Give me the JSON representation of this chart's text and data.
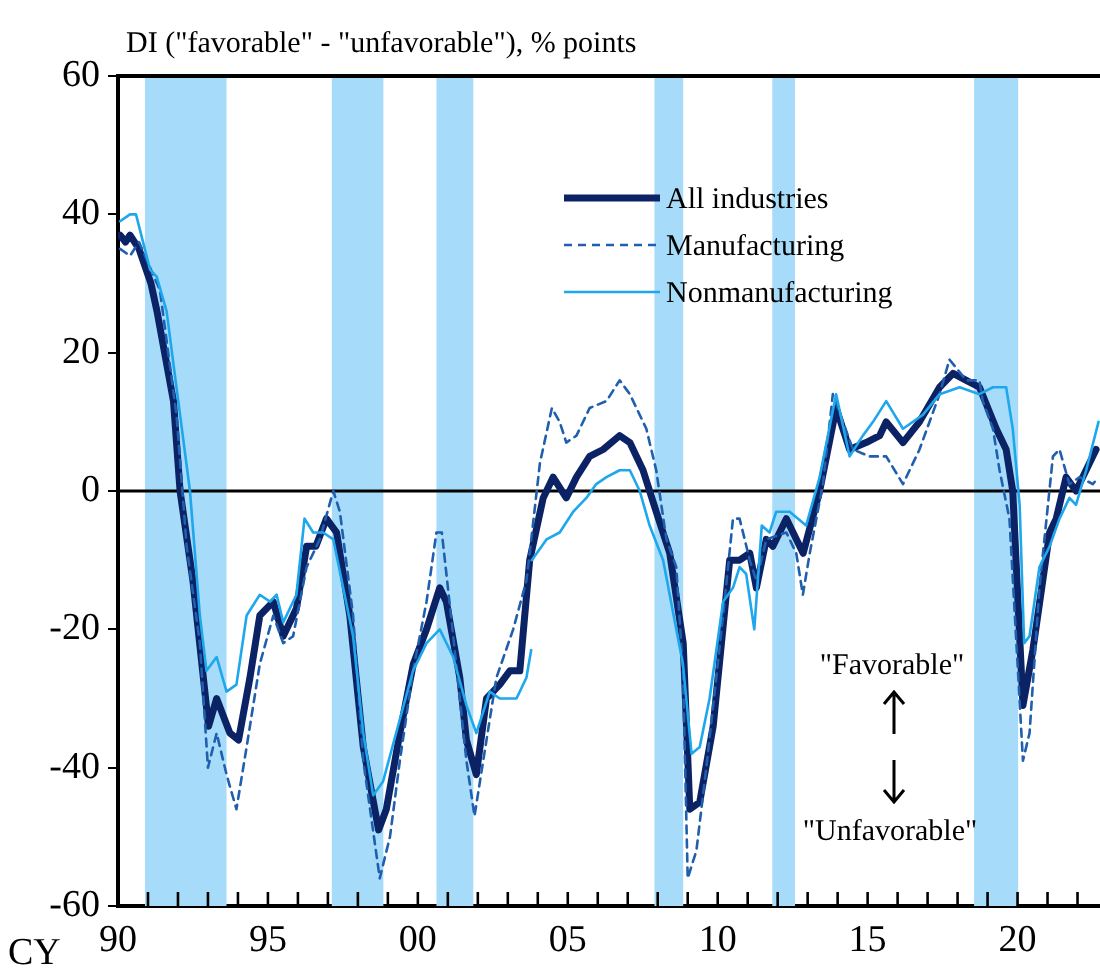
{
  "chart_data": {
    "type": "line",
    "ylabel": "DI (\"favorable\" - \"unfavorable\"), % points",
    "xlabel": "CY",
    "xlim": [
      1990,
      2022.75
    ],
    "xticks": [
      {
        "value": 1990,
        "label": "90"
      },
      {
        "value": 1991,
        "label": null
      },
      {
        "value": 1992,
        "label": null
      },
      {
        "value": 1993,
        "label": null
      },
      {
        "value": 1994,
        "label": null
      },
      {
        "value": 1995,
        "label": "95"
      },
      {
        "value": 1996,
        "label": null
      },
      {
        "value": 1997,
        "label": null
      },
      {
        "value": 1998,
        "label": null
      },
      {
        "value": 1999,
        "label": null
      },
      {
        "value": 2000,
        "label": "00"
      },
      {
        "value": 2001,
        "label": null
      },
      {
        "value": 2002,
        "label": null
      },
      {
        "value": 2003,
        "label": null
      },
      {
        "value": 2004,
        "label": null
      },
      {
        "value": 2005,
        "label": "05"
      },
      {
        "value": 2006,
        "label": null
      },
      {
        "value": 2007,
        "label": null
      },
      {
        "value": 2008,
        "label": null
      },
      {
        "value": 2009,
        "label": null
      },
      {
        "value": 2010,
        "label": "10"
      },
      {
        "value": 2011,
        "label": null
      },
      {
        "value": 2012,
        "label": null
      },
      {
        "value": 2013,
        "label": null
      },
      {
        "value": 2014,
        "label": null
      },
      {
        "value": 2015,
        "label": "15"
      },
      {
        "value": 2016,
        "label": null
      },
      {
        "value": 2017,
        "label": null
      },
      {
        "value": 2018,
        "label": null
      },
      {
        "value": 2019,
        "label": null
      },
      {
        "value": 2020,
        "label": "20"
      },
      {
        "value": 2021,
        "label": null
      },
      {
        "value": 2022,
        "label": null
      }
    ],
    "ylim": [
      -60,
      60
    ],
    "yticks": [
      -60,
      -40,
      -20,
      0,
      20,
      40,
      60
    ],
    "grid": false,
    "legend": "top right",
    "marker": "none",
    "series": [
      {
        "name": "All industries",
        "color": "#0b2265",
        "x": [
          1990.07,
          1990.25,
          1990.4,
          1990.7,
          1991.1,
          1991.3,
          1991.85,
          1992.07,
          1992.5,
          1993.02,
          1993.29,
          1993.73,
          1994.02,
          1994.4,
          1994.73,
          1995.18,
          1995.51,
          1995.95,
          1996.29,
          1996.6,
          1996.95,
          1997.29,
          1997.73,
          1998.18,
          1998.69,
          1998.95,
          1999.4,
          1999.85,
          2000.29,
          2000.73,
          2000.95,
          2001.4,
          2001.62,
          2001.95,
          2002.29,
          2002.73,
          2003.07,
          2003.4,
          2003.73,
          2004.18,
          2004.51,
          2004.95,
          2005.29,
          2005.73,
          2006.18,
          2006.73,
          2007.07,
          2007.51,
          2007.95,
          2008.4,
          2008.85,
          2009.07,
          2009.4,
          2009.85,
          2010.4,
          2010.73,
          2011.07,
          2011.29,
          2011.62,
          2011.84,
          2012.29,
          2012.85,
          2013.4,
          2013.95,
          2014.4,
          2014.95,
          2015.4,
          2015.62,
          2016.18,
          2016.73,
          2017.4,
          2017.85,
          2018.29,
          2018.73,
          2019.29,
          2019.62,
          2019.84,
          2020.18,
          2020.51,
          2021.07,
          2021.29,
          2021.62,
          2021.95,
          2022.62
        ],
        "values": [
          37,
          36,
          37,
          35,
          30,
          26,
          13,
          0,
          -13,
          -34,
          -30,
          -35,
          -36,
          -27,
          -18,
          -16,
          -21,
          -17,
          -8,
          -8,
          -4,
          -6,
          -18,
          -37,
          -49,
          -46,
          -35,
          -25,
          -20,
          -14,
          -16,
          -27,
          -36,
          -41,
          -30,
          -28,
          -26,
          -26,
          -10,
          -1,
          2,
          -1,
          2,
          5,
          6,
          8,
          7,
          3,
          -3,
          -9,
          -22,
          -46,
          -45,
          -34,
          -10,
          -10,
          -9,
          -14,
          -7,
          -8,
          -4,
          -9,
          0,
          12,
          6,
          7,
          8,
          10,
          7,
          10,
          15,
          17,
          16,
          15,
          9,
          6,
          0,
          -31,
          -23,
          -6,
          -4,
          2,
          0,
          6
        ]
      },
      {
        "name": "Manufacturing",
        "color": "#1f5fae",
        "line_style": "dashed",
        "x": [
          1990.07,
          1990.4,
          1990.7,
          1991.4,
          1991.95,
          1992.29,
          1992.73,
          1993.0,
          1993.29,
          1993.62,
          1993.95,
          1994.29,
          1994.73,
          1995.18,
          1995.51,
          1995.84,
          1996.29,
          1996.73,
          1997.18,
          1997.4,
          1997.84,
          1998.18,
          1998.73,
          1999.07,
          1999.4,
          1999.84,
          2000.29,
          2000.62,
          2000.8,
          2001.18,
          2001.62,
          2001.89,
          2002.18,
          2002.62,
          2003.18,
          2003.62,
          2003.73,
          2004.07,
          2004.47,
          2004.73,
          2004.95,
          2005.29,
          2005.73,
          2006.29,
          2006.73,
          2007.07,
          2007.62,
          2007.95,
          2008.29,
          2008.62,
          2008.84,
          2009.0,
          2009.29,
          2009.62,
          2010.18,
          2010.51,
          2010.73,
          2011.07,
          2011.29,
          2011.62,
          2012.29,
          2012.62,
          2012.84,
          2013.07,
          2013.51,
          2013.84,
          2014.51,
          2015.07,
          2015.62,
          2016.18,
          2016.73,
          2017.4,
          2017.73,
          2018.29,
          2018.73,
          2018.84,
          2019.18,
          2019.4,
          2019.73,
          2020.18,
          2020.4,
          2020.73,
          2021.18,
          2021.4,
          2021.73,
          2022.07,
          2022.51,
          2022.7
        ],
        "values": [
          35,
          34,
          36,
          29,
          11,
          -8,
          -22,
          -40,
          -35,
          -41,
          -46,
          -37,
          -25,
          -18,
          -22,
          -21,
          -11,
          -7,
          0,
          -3,
          -18,
          -39,
          -56,
          -50,
          -39,
          -26,
          -16,
          -6,
          -6,
          -21,
          -39,
          -47,
          -39,
          -27,
          -20,
          -13,
          -9,
          4,
          12,
          10,
          7,
          8,
          12,
          13,
          16,
          14,
          9,
          3,
          -7,
          -11,
          -26,
          -56,
          -52,
          -40,
          -18,
          -4,
          -4,
          -10,
          -13,
          -7,
          -6,
          -9,
          -15,
          -9,
          1,
          14,
          6,
          5,
          5,
          1,
          6,
          14,
          19,
          16,
          16,
          13,
          9,
          3,
          -4,
          -39,
          -35,
          -14,
          5,
          6,
          1,
          2,
          1,
          2
        ]
      },
      {
        "name": "Nonmanufacturing",
        "color": "#1ea7ec",
        "x": [
          1990.07,
          1990.4,
          1990.6,
          1991.07,
          1991.29,
          1991.62,
          1992.07,
          1992.4,
          1992.73,
          1992.95,
          1993.29,
          1993.62,
          1993.95,
          1994.29,
          1994.73,
          1995.07,
          1995.29,
          1995.51,
          1995.95,
          1996.22,
          1996.51,
          1996.84,
          1997.18,
          1997.84,
          1998.18,
          1998.51,
          1998.84,
          1999.4,
          1999.84,
          2000.29,
          2000.73,
          2001.18,
          2001.62,
          2001.95,
          2002.4,
          2002.73,
          2003.29,
          2003.62,
          2003.78,
          2003.79,
          2003.8,
          2004.29,
          2004.73,
          2005.18,
          2005.62,
          2005.95,
          2006.29,
          2006.73,
          2007.07,
          2007.4,
          2007.73,
          2008.18,
          2008.84,
          2009.13,
          2009.4,
          2009.73,
          2010.18,
          2010.51,
          2010.73,
          2010.95,
          2011.22,
          2011.47,
          2011.73,
          2011.95,
          2012.4,
          2012.95,
          2013.4,
          2013.95,
          2014.4,
          2014.84,
          2015.18,
          2015.62,
          2016.18,
          2016.84,
          2017.4,
          2018.07,
          2018.73,
          2019.18,
          2019.62,
          2019.84,
          2020.07,
          2020.22,
          2020.4,
          2020.73,
          2021.07,
          2021.4,
          2021.73,
          2021.95,
          2022.29,
          2022.7
        ],
        "values": [
          39,
          40,
          40,
          32,
          31,
          26,
          11,
          0,
          -18,
          -26,
          -24,
          -29,
          -28,
          -18,
          -15,
          -16,
          -15,
          -19,
          -15,
          -4,
          -6,
          -6,
          -7,
          -21,
          -35,
          -44,
          -42,
          -33,
          -26,
          -22,
          -20,
          -24,
          -31,
          -35,
          -29,
          -30,
          -30,
          -27,
          -23,
          null,
          -10,
          -7,
          -6,
          -3,
          -1,
          1,
          2,
          3,
          3,
          0,
          -5,
          -10,
          -25,
          -38,
          -37,
          -30,
          -16,
          -14,
          -11,
          -12,
          -20,
          -5,
          -6,
          -3,
          -3,
          -5,
          2,
          14,
          5,
          8,
          10,
          13,
          9,
          11,
          14,
          15,
          14,
          15,
          15,
          9,
          -2,
          -22,
          -21,
          -11,
          -8,
          -4,
          -1,
          -2,
          3,
          10
        ]
      }
    ],
    "ref_lines": [
      {
        "axis": "y",
        "value": 0,
        "color": "#000000"
      }
    ],
    "bands": [
      {
        "axis": "x",
        "from": 1990.9,
        "to": 1993.62,
        "color": "#a6dcfa"
      },
      {
        "axis": "x",
        "from": 1997.13,
        "to": 1998.85,
        "color": "#a6dcfa"
      },
      {
        "axis": "x",
        "from": 2000.62,
        "to": 2001.85,
        "color": "#a6dcfa"
      },
      {
        "axis": "x",
        "from": 2007.89,
        "to": 2008.85,
        "color": "#a6dcfa"
      },
      {
        "axis": "x",
        "from": 2011.82,
        "to": 2012.58,
        "color": "#a6dcfa"
      },
      {
        "axis": "x",
        "from": 2018.55,
        "to": 2020.02,
        "color": "#a6dcfa"
      }
    ],
    "annotations": [
      "\"Favorable\"",
      "\"Unfavorable\""
    ]
  }
}
